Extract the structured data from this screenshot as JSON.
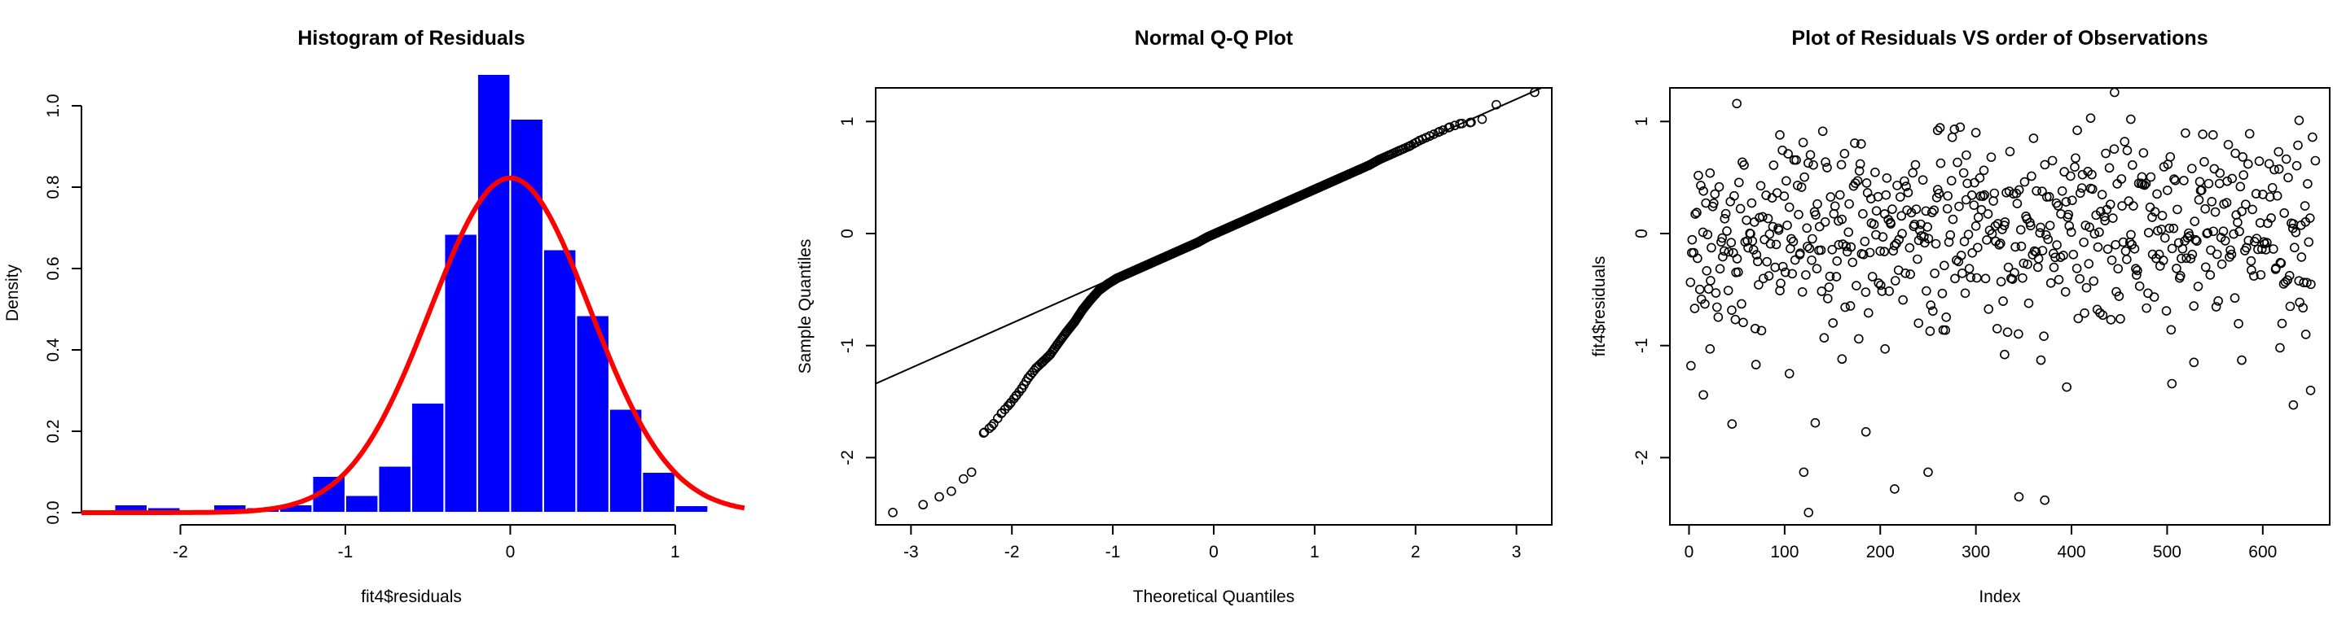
{
  "chart_data": [
    {
      "type": "bar",
      "title": "Histogram of Residuals",
      "xlabel": "fit4$residuals",
      "ylabel": "Density",
      "xlim": [
        -2.6,
        1.45
      ],
      "ylim": [
        0,
        1.08
      ],
      "xticks": [
        -2,
        -1,
        0,
        1
      ],
      "xtick_labels": [
        "-2",
        "-1",
        "0",
        "1"
      ],
      "yticks": [
        0.0,
        0.2,
        0.4,
        0.6,
        0.8,
        1.0
      ],
      "ytick_labels": [
        "0.0",
        "0.2",
        "0.4",
        "0.6",
        "0.8",
        "1.0"
      ],
      "bin_width": 0.2,
      "bin_starts": [
        -2.4,
        -2.2,
        -2.0,
        -1.8,
        -1.6,
        -1.4,
        -1.2,
        -1.0,
        -0.8,
        -0.6,
        -0.4,
        -0.2,
        0.0,
        0.2,
        0.4,
        0.6,
        0.8,
        1.0,
        1.2
      ],
      "values": [
        0.02,
        0.013,
        0.0,
        0.02,
        0.013,
        0.02,
        0.09,
        0.043,
        0.115,
        0.27,
        0.685,
        1.078,
        0.968,
        0.647,
        0.485,
        0.255,
        0.1,
        0.018,
        0.0
      ],
      "bar_color": "#0000FF",
      "density_curve": {
        "type": "normal",
        "mean": 0.0,
        "sd": 0.485,
        "x_range": [
          -2.6,
          1.42
        ],
        "color": "#FF0000"
      }
    },
    {
      "type": "scatter",
      "title": "Normal Q-Q Plot",
      "xlabel": "Theoretical Quantiles",
      "ylabel": "Sample Quantiles",
      "xlim": [
        -3.35,
        3.35
      ],
      "ylim": [
        -2.6,
        1.3
      ],
      "xticks": [
        -3,
        -2,
        -1,
        0,
        1,
        2,
        3
      ],
      "xtick_labels": [
        "-3",
        "-2",
        "-1",
        "0",
        "1",
        "2",
        "3"
      ],
      "yticks": [
        -2,
        -1,
        0,
        1
      ],
      "ytick_labels": [
        "-2",
        "-1",
        "0",
        "1"
      ],
      "qq_line": {
        "intercept": 0.0,
        "slope": 0.4
      },
      "n_points": 650,
      "points_xy": [
        [
          -3.18,
          -2.49
        ],
        [
          -2.88,
          -2.42
        ],
        [
          -2.72,
          -2.35
        ],
        [
          -2.6,
          -2.3
        ],
        [
          -2.48,
          -2.19
        ],
        [
          -2.4,
          -2.13
        ],
        [
          -2.28,
          -1.78
        ],
        [
          -2.2,
          -1.72
        ],
        [
          -2.1,
          -1.6
        ],
        [
          -2.02,
          -1.52
        ],
        [
          -1.96,
          -1.45
        ],
        [
          -1.9,
          -1.38
        ],
        [
          -1.84,
          -1.29
        ],
        [
          -1.76,
          -1.2
        ],
        [
          -1.7,
          -1.15
        ],
        [
          -1.62,
          -1.08
        ],
        [
          -1.55,
          -0.99
        ],
        [
          -1.46,
          -0.88
        ],
        [
          -1.38,
          -0.79
        ],
        [
          -1.3,
          -0.68
        ],
        [
          -1.22,
          -0.59
        ],
        [
          -1.14,
          -0.51
        ],
        [
          -1.05,
          -0.45
        ],
        [
          -0.96,
          -0.4
        ],
        [
          -0.86,
          -0.36
        ],
        [
          -0.76,
          -0.32
        ],
        [
          -0.66,
          -0.28
        ],
        [
          -0.56,
          -0.24
        ],
        [
          -0.46,
          -0.2
        ],
        [
          -0.36,
          -0.16
        ],
        [
          -0.26,
          -0.12
        ],
        [
          -0.16,
          -0.08
        ],
        [
          -0.06,
          -0.03
        ],
        [
          0.04,
          0.01
        ],
        [
          0.14,
          0.05
        ],
        [
          0.24,
          0.09
        ],
        [
          0.34,
          0.13
        ],
        [
          0.44,
          0.17
        ],
        [
          0.54,
          0.21
        ],
        [
          0.64,
          0.25
        ],
        [
          0.74,
          0.29
        ],
        [
          0.84,
          0.33
        ],
        [
          0.94,
          0.37
        ],
        [
          1.04,
          0.41
        ],
        [
          1.14,
          0.45
        ],
        [
          1.24,
          0.49
        ],
        [
          1.34,
          0.53
        ],
        [
          1.44,
          0.57
        ],
        [
          1.54,
          0.61
        ],
        [
          1.64,
          0.66
        ],
        [
          1.74,
          0.7
        ],
        [
          1.84,
          0.74
        ],
        [
          1.94,
          0.78
        ],
        [
          2.04,
          0.83
        ],
        [
          2.14,
          0.87
        ],
        [
          2.24,
          0.91
        ],
        [
          2.34,
          0.95
        ],
        [
          2.44,
          0.98
        ],
        [
          2.54,
          0.99
        ],
        [
          2.66,
          1.02
        ],
        [
          2.8,
          1.15
        ],
        [
          3.18,
          1.26
        ]
      ]
    },
    {
      "type": "scatter",
      "title": "Plot of Residuals VS order of Observations",
      "xlabel": "Index",
      "ylabel": "fit4$residuals",
      "xlim": [
        -20,
        670
      ],
      "ylim": [
        -2.6,
        1.3
      ],
      "xticks": [
        0,
        100,
        200,
        300,
        400,
        500,
        600
      ],
      "xtick_labels": [
        "0",
        "100",
        "200",
        "300",
        "400",
        "500",
        "600"
      ],
      "yticks": [
        -2,
        -1,
        0,
        1
      ],
      "ytick_labels": [
        "-2",
        "-1",
        "0",
        "1"
      ],
      "n_points": 650,
      "points_xy": [
        [
          2,
          -1.18
        ],
        [
          15,
          -1.44
        ],
        [
          22,
          -1.03
        ],
        [
          45,
          -1.7
        ],
        [
          50,
          1.16
        ],
        [
          70,
          -1.17
        ],
        [
          95,
          0.88
        ],
        [
          105,
          -1.25
        ],
        [
          120,
          -2.13
        ],
        [
          125,
          -2.49
        ],
        [
          132,
          -1.69
        ],
        [
          160,
          -1.12
        ],
        [
          185,
          -1.77
        ],
        [
          205,
          -1.03
        ],
        [
          215,
          -2.28
        ],
        [
          250,
          -2.13
        ],
        [
          260,
          0.92
        ],
        [
          300,
          0.9
        ],
        [
          345,
          -2.35
        ],
        [
          372,
          -2.38
        ],
        [
          368,
          -1.13
        ],
        [
          395,
          -1.37
        ],
        [
          420,
          1.03
        ],
        [
          445,
          1.26
        ],
        [
          462,
          1.02
        ],
        [
          505,
          -1.34
        ],
        [
          528,
          -1.15
        ],
        [
          548,
          0.88
        ],
        [
          578,
          -1.13
        ],
        [
          618,
          -1.02
        ],
        [
          632,
          -1.53
        ],
        [
          638,
          1.01
        ],
        [
          645,
          -0.9
        ],
        [
          650,
          -1.4
        ],
        [
          652,
          0.86
        ],
        [
          655,
          0.65
        ],
        [
          330,
          -1.08
        ],
        [
          290,
          0.7
        ],
        [
          180,
          0.8
        ],
        [
          240,
          -0.8
        ]
      ]
    }
  ]
}
